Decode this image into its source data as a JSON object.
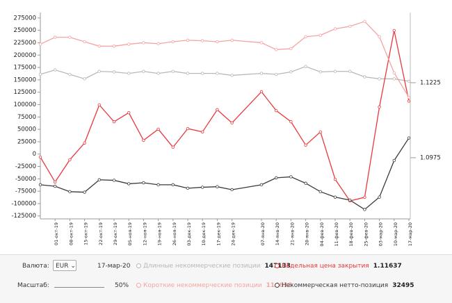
{
  "chart_data": {
    "type": "line",
    "x": [
      "2019-09-24",
      "2019-10-01",
      "2019-10-08",
      "2019-10-15",
      "2019-10-22",
      "2019-10-29",
      "2019-11-05",
      "2019-11-12",
      "2019-11-19",
      "2019-11-26",
      "2019-12-03",
      "2019-12-10",
      "2019-12-17",
      "2019-12-24",
      "2020-01-07",
      "2020-01-14",
      "2020-01-21",
      "2020-01-28",
      "2020-02-04",
      "2020-02-11",
      "2020-02-18",
      "2020-02-25",
      "2020-03-03",
      "2020-03-10",
      "2020-03-17"
    ],
    "xlim": [
      "2019-09-24",
      "2020-03-17"
    ],
    "xticks": [
      {
        "value": "2019-10-01",
        "label": "01-окт-19"
      },
      {
        "value": "2019-10-08",
        "label": "08-окт-19"
      },
      {
        "value": "2019-10-15",
        "label": "15-окт-19"
      },
      {
        "value": "2019-10-22",
        "label": "22-окт-19"
      },
      {
        "value": "2019-10-29",
        "label": "29-окт-19"
      },
      {
        "value": "2019-11-05",
        "label": "05-ноя-19"
      },
      {
        "value": "2019-11-12",
        "label": "12-ноя-19"
      },
      {
        "value": "2019-11-19",
        "label": "19-ноя-19"
      },
      {
        "value": "2019-11-26",
        "label": "26-ноя-19"
      },
      {
        "value": "2019-12-03",
        "label": "03-дек-19"
      },
      {
        "value": "2019-12-10",
        "label": "10-дек-19"
      },
      {
        "value": "2019-12-17",
        "label": "17-дек-19"
      },
      {
        "value": "2019-12-24",
        "label": "24-дек-19"
      },
      {
        "value": "2020-01-07",
        "label": "07-янв-20"
      },
      {
        "value": "2020-01-14",
        "label": "14-янв-20"
      },
      {
        "value": "2020-01-21",
        "label": "21-янв-20"
      },
      {
        "value": "2020-01-28",
        "label": "28-янв-20"
      },
      {
        "value": "2020-02-04",
        "label": "04-фев-20"
      },
      {
        "value": "2020-02-11",
        "label": "11-фев-20"
      },
      {
        "value": "2020-02-18",
        "label": "18-фев-20"
      },
      {
        "value": "2020-02-25",
        "label": "25-фев-20"
      },
      {
        "value": "2020-03-03",
        "label": "03-мар-20"
      },
      {
        "value": "2020-03-10",
        "label": "10-мар-20"
      },
      {
        "value": "2020-03-17",
        "label": "17-мар-20"
      }
    ],
    "ylim": [
      -131000,
      286000
    ],
    "yticks": [
      275000,
      250000,
      225000,
      200000,
      175000,
      150000,
      125000,
      100000,
      75000,
      50000,
      25000,
      0,
      -25000,
      -50000,
      -75000,
      -100000,
      -125000
    ],
    "y2lim": [
      1.0771,
      1.1459
    ],
    "y2ticks": [
      1.1225,
      1.0975
    ],
    "series": [
      {
        "name": "Длинные некоммерческие позиции",
        "color": "#b8b8b8",
        "values": [
          161000,
          170000,
          161000,
          152000,
          167000,
          166000,
          163000,
          167000,
          163000,
          167000,
          163000,
          163000,
          163000,
          159000,
          163000,
          161000,
          166000,
          177000,
          166000,
          167000,
          167000,
          156000,
          152000,
          152000,
          147133
        ]
      },
      {
        "name": "Недельная цена закрытия",
        "color": "#e8383d",
        "axis": "y2",
        "values": [
          1.0977,
          1.0894,
          1.0968,
          1.1024,
          1.1151,
          1.1095,
          1.1125,
          1.1033,
          1.107,
          1.101,
          1.1072,
          1.1061,
          1.1135,
          1.1091,
          1.1195,
          1.1132,
          1.1095,
          1.1017,
          1.1061,
          1.0903,
          1.0831,
          1.0843,
          1.1144,
          1.1399,
          1.11637
        ]
      },
      {
        "name": "Короткие некоммерческие позиции",
        "color": "#f5a3a3",
        "values": [
          222000,
          236000,
          236000,
          227000,
          218000,
          218000,
          222000,
          225000,
          223000,
          227000,
          230000,
          229000,
          227000,
          230000,
          225000,
          211000,
          213000,
          237000,
          240000,
          253000,
          258000,
          268000,
          237000,
          164000,
          114638
        ]
      },
      {
        "name": "Некоммерческая нетто-позиция",
        "color": "#3a3a3a",
        "values": [
          -62000,
          -65000,
          -76000,
          -77000,
          -52000,
          -53000,
          -60000,
          -58000,
          -62000,
          -62000,
          -69000,
          -67000,
          -66000,
          -72000,
          -62000,
          -48000,
          -46000,
          -59000,
          -76000,
          -87000,
          -93000,
          -112000,
          -87000,
          -13000,
          32495
        ]
      }
    ]
  },
  "panel": {
    "currency_label": "Валюта:",
    "currency": "EUR",
    "date": "17-мар-20",
    "scale_label": "Масштаб:",
    "scale": "50%"
  }
}
